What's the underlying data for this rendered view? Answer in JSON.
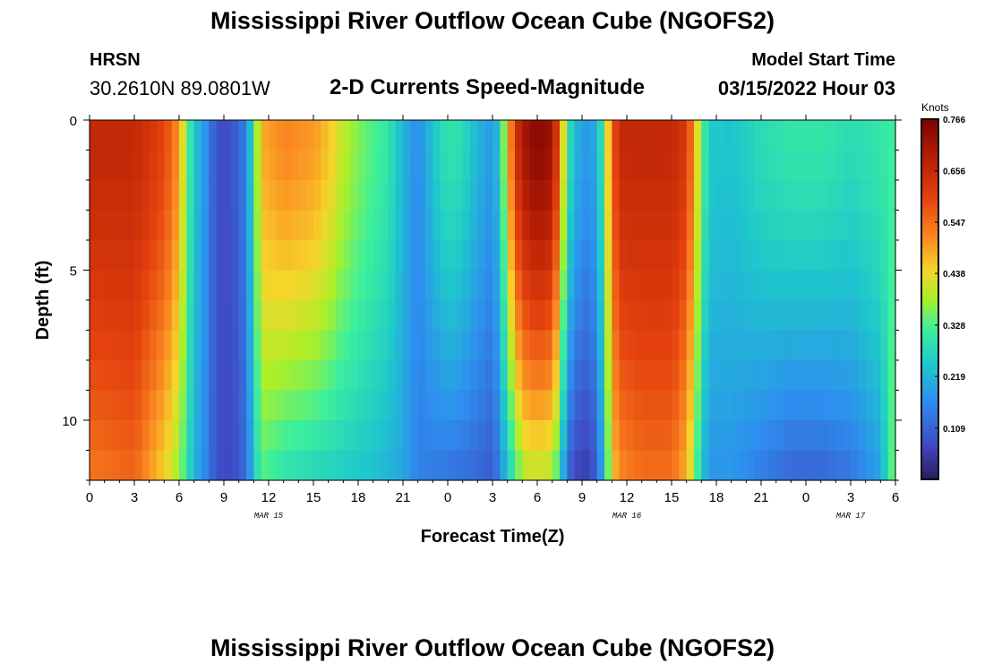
{
  "header": {
    "title": "Mississippi River Outflow Ocean Cube (NGOFS2)",
    "station": "HRSN",
    "coords": "30.2610N  89.0801W",
    "subtitle": "2-D Currents Speed-Magnitude",
    "model_start_label": "Model Start Time",
    "model_start_value": "03/15/2022 Hour 03"
  },
  "footer": {
    "title_repeat": "Mississippi River Outflow Ocean Cube (NGOFS2)"
  },
  "colorbar": {
    "units": "Knots",
    "ticks": [
      "0.766",
      "0.656",
      "0.547",
      "0.438",
      "0.328",
      "0.219",
      "0.109"
    ],
    "range": [
      0.0,
      0.766
    ]
  },
  "chart_data": {
    "type": "heatmap",
    "title": "2-D Currents Speed-Magnitude",
    "xlabel": "Forecast Time(Z)",
    "ylabel": "Depth (ft)",
    "xlim": [
      0,
      54
    ],
    "ylim": [
      0,
      12
    ],
    "x_tick_labels": [
      "0",
      "3",
      "6",
      "9",
      "12",
      "15",
      "18",
      "21",
      "0",
      "3",
      "6",
      "9",
      "12",
      "15",
      "18",
      "21",
      "0",
      "3",
      "6"
    ],
    "x_tick_hours": [
      0,
      3,
      6,
      9,
      12,
      15,
      18,
      21,
      24,
      27,
      30,
      33,
      36,
      39,
      42,
      45,
      48,
      51,
      54
    ],
    "date_labels": [
      {
        "hour": 12,
        "text": "MAR 15"
      },
      {
        "hour": 36,
        "text": "MAR 16"
      },
      {
        "hour": 51,
        "text": "MAR 17"
      }
    ],
    "y_tick_labels": [
      "0",
      "5",
      "10"
    ],
    "y_tick_values": [
      0,
      5,
      10
    ],
    "depth_levels": 12,
    "hours_per_column": 0.5,
    "surface_speed_keyframes": [
      [
        0,
        0.66
      ],
      [
        3,
        0.66
      ],
      [
        5,
        0.6
      ],
      [
        6,
        0.5
      ],
      [
        6.5,
        0.35
      ],
      [
        7,
        0.25
      ],
      [
        8,
        0.15
      ],
      [
        8.5,
        0.08
      ],
      [
        9.5,
        0.08
      ],
      [
        10.5,
        0.15
      ],
      [
        11,
        0.3
      ],
      [
        11.5,
        0.48
      ],
      [
        13,
        0.52
      ],
      [
        15,
        0.5
      ],
      [
        16,
        0.46
      ],
      [
        17,
        0.4
      ],
      [
        18,
        0.36
      ],
      [
        20,
        0.3
      ],
      [
        21,
        0.22
      ],
      [
        22,
        0.16
      ],
      [
        23,
        0.24
      ],
      [
        24,
        0.3
      ],
      [
        25,
        0.28
      ],
      [
        26,
        0.22
      ],
      [
        27,
        0.18
      ],
      [
        27.5,
        0.26
      ],
      [
        28,
        0.45
      ],
      [
        28.5,
        0.62
      ],
      [
        29,
        0.7
      ],
      [
        30,
        0.75
      ],
      [
        31,
        0.72
      ],
      [
        31.5,
        0.55
      ],
      [
        32,
        0.3
      ],
      [
        33,
        0.18
      ],
      [
        34,
        0.2
      ],
      [
        34.5,
        0.35
      ],
      [
        35,
        0.55
      ],
      [
        35.5,
        0.66
      ],
      [
        37,
        0.66
      ],
      [
        39,
        0.66
      ],
      [
        40,
        0.62
      ],
      [
        40.5,
        0.5
      ],
      [
        41,
        0.35
      ],
      [
        41.5,
        0.25
      ],
      [
        43,
        0.24
      ],
      [
        45,
        0.28
      ],
      [
        47,
        0.3
      ],
      [
        49,
        0.3
      ],
      [
        51,
        0.28
      ],
      [
        53,
        0.3
      ],
      [
        54,
        0.32
      ]
    ],
    "bottom_speed_keyframes": [
      [
        0,
        0.54
      ],
      [
        3,
        0.56
      ],
      [
        5,
        0.45
      ],
      [
        6,
        0.38
      ],
      [
        6.5,
        0.3
      ],
      [
        7,
        0.22
      ],
      [
        8,
        0.14
      ],
      [
        8.5,
        0.08
      ],
      [
        9.5,
        0.07
      ],
      [
        10.5,
        0.12
      ],
      [
        11,
        0.24
      ],
      [
        11.5,
        0.34
      ],
      [
        13,
        0.3
      ],
      [
        15,
        0.28
      ],
      [
        17,
        0.26
      ],
      [
        19,
        0.24
      ],
      [
        21,
        0.2
      ],
      [
        22,
        0.15
      ],
      [
        24,
        0.14
      ],
      [
        26,
        0.12
      ],
      [
        27,
        0.1
      ],
      [
        27.5,
        0.16
      ],
      [
        28,
        0.25
      ],
      [
        28.5,
        0.32
      ],
      [
        29,
        0.4
      ],
      [
        30,
        0.42
      ],
      [
        31,
        0.4
      ],
      [
        31.5,
        0.3
      ],
      [
        32,
        0.12
      ],
      [
        33,
        0.05
      ],
      [
        34,
        0.1
      ],
      [
        34.5,
        0.25
      ],
      [
        35,
        0.45
      ],
      [
        35.5,
        0.52
      ],
      [
        37,
        0.55
      ],
      [
        39,
        0.55
      ],
      [
        40,
        0.48
      ],
      [
        40.5,
        0.38
      ],
      [
        41,
        0.25
      ],
      [
        41.5,
        0.18
      ],
      [
        43,
        0.18
      ],
      [
        45,
        0.15
      ],
      [
        47,
        0.12
      ],
      [
        49,
        0.12
      ],
      [
        51,
        0.14
      ],
      [
        53,
        0.2
      ],
      [
        54,
        0.38
      ]
    ]
  }
}
